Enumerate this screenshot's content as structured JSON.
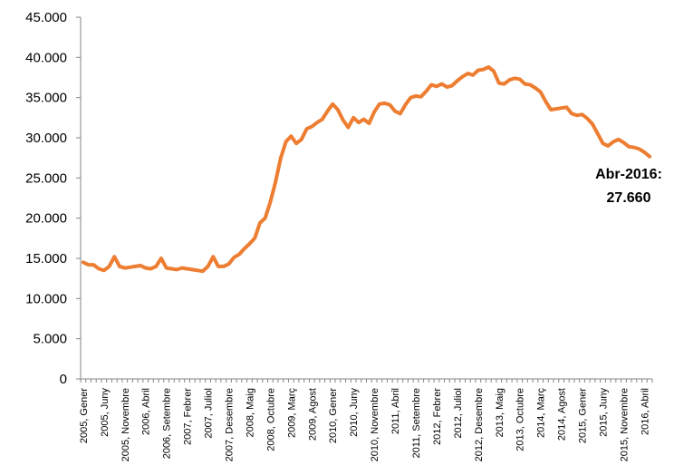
{
  "chart_data": {
    "type": "line",
    "title": "",
    "xlabel": "",
    "ylabel": "",
    "ylim": [
      0,
      45000
    ],
    "grid": false,
    "legend": "none",
    "y_ticks": [
      "0",
      "5.000",
      "10.000",
      "15.000",
      "20.000",
      "25.000",
      "30.000",
      "35.000",
      "40.000",
      "45.000"
    ],
    "x_tick_labels": [
      "2005, Gener",
      "2005, Juny",
      "2005, Novembre",
      "2006, Abril",
      "2006, Setembre",
      "2007, Febrer",
      "2007, Juliol",
      "2007, Desembre",
      "2008, Maig",
      "2008, Octubre",
      "2009, Març",
      "2009, Agost",
      "2010, Gener",
      "2010, Juny",
      "2010, Novembre",
      "2011, Abril",
      "2011, Setembre",
      "2012, Febrer",
      "2012, Juliol",
      "2012, Desembre",
      "2013, Maig",
      "2013, Octubre",
      "2014, Març",
      "2014, Agost",
      "2015, Gener",
      "2015, Juny",
      "2015, Novembre",
      "2016, Abril"
    ],
    "series": [
      {
        "color": "#ED7D31",
        "values": [
          14500,
          14200,
          14200,
          13700,
          13500,
          14000,
          15200,
          14000,
          13800,
          13900,
          14000,
          14100,
          13800,
          13700,
          14000,
          15000,
          13800,
          13700,
          13600,
          13800,
          13700,
          13600,
          13500,
          13400,
          14000,
          15200,
          14000,
          14000,
          14300,
          15100,
          15500,
          16200,
          16800,
          17500,
          19400,
          20000,
          22000,
          24500,
          27500,
          29500,
          30200,
          29300,
          29800,
          31100,
          31400,
          31900,
          32300,
          33300,
          34200,
          33500,
          32200,
          31300,
          32500,
          31900,
          32300,
          31800,
          33200,
          34200,
          34300,
          34100,
          33300,
          33000,
          34100,
          35000,
          35200,
          35100,
          35800,
          36600,
          36400,
          36700,
          36300,
          36500,
          37100,
          37600,
          38000,
          37800,
          38400,
          38500,
          38800,
          38300,
          36800,
          36700,
          37200,
          37400,
          37300,
          36700,
          36600,
          36200,
          35700,
          34500,
          33500,
          33600,
          33700,
          33800,
          33000,
          32800,
          32900,
          32400,
          31700,
          30500,
          29300,
          29000,
          29500,
          29800,
          29400,
          28900,
          28800,
          28600,
          28200,
          27660
        ]
      }
    ],
    "annotation": {
      "line1": "Abr-2016:",
      "line2": "27.660"
    }
  }
}
